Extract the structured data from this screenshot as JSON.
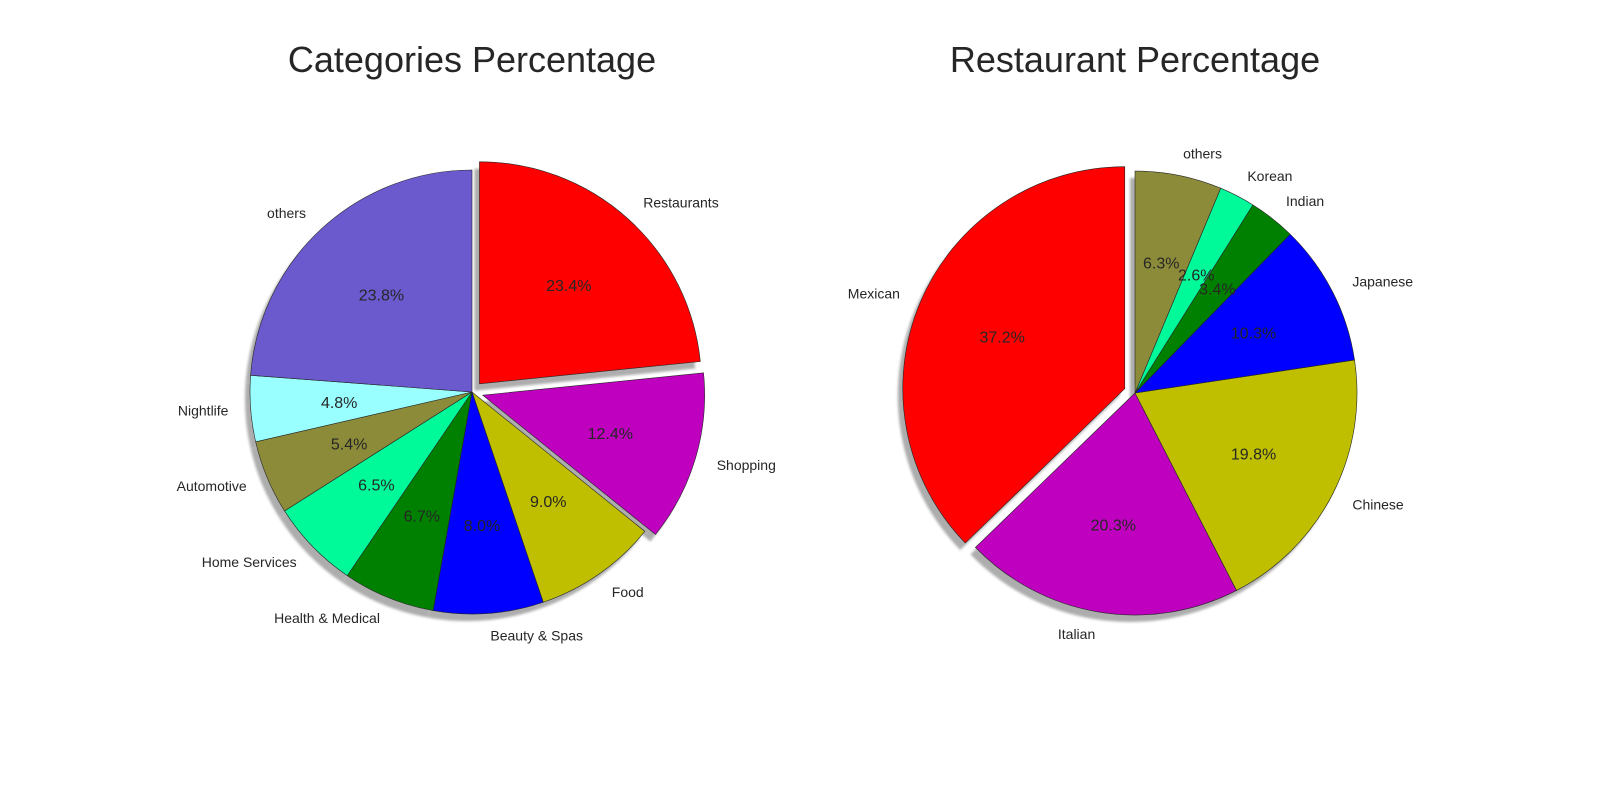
{
  "chart_data": [
    {
      "type": "pie",
      "title": "Categories Percentage",
      "start_angle_deg": 90,
      "direction": "clockwise",
      "shadow": true,
      "slices": [
        {
          "label": "Restaurants",
          "value": 23.4,
          "pct_text": "23.4%",
          "color": "#ff0000",
          "exploded": true
        },
        {
          "label": "Shopping",
          "value": 12.4,
          "pct_text": "12.4%",
          "color": "#bf00bf",
          "exploded": true
        },
        {
          "label": "Food",
          "value": 9.0,
          "pct_text": "9.0%",
          "color": "#bfbf00",
          "exploded": false
        },
        {
          "label": "Beauty & Spas",
          "value": 8.0,
          "pct_text": "8.0%",
          "color": "#0000ff",
          "exploded": false
        },
        {
          "label": "Health & Medical",
          "value": 6.7,
          "pct_text": "6.7%",
          "color": "#008000",
          "exploded": false
        },
        {
          "label": "Home Services",
          "value": 6.5,
          "pct_text": "6.5%",
          "color": "#00fa9a",
          "exploded": false
        },
        {
          "label": "Automotive",
          "value": 5.4,
          "pct_text": "5.4%",
          "color": "#8b8b3a",
          "exploded": false
        },
        {
          "label": "Nightlife",
          "value": 4.8,
          "pct_text": "4.8%",
          "color": "#99ffff",
          "exploded": false
        },
        {
          "label": "others",
          "value": 23.8,
          "pct_text": "23.8%",
          "color": "#6a5acd",
          "exploded": false
        }
      ]
    },
    {
      "type": "pie",
      "title": "Restaurant Percentage",
      "start_angle_deg": 90,
      "direction": "counterclockwise",
      "shadow": true,
      "slices": [
        {
          "label": "Mexican",
          "value": 37.2,
          "pct_text": "37.2%",
          "color": "#ff0000",
          "exploded": true
        },
        {
          "label": "Italian",
          "value": 20.3,
          "pct_text": "20.3%",
          "color": "#bf00bf",
          "exploded": false
        },
        {
          "label": "Chinese",
          "value": 19.8,
          "pct_text": "19.8%",
          "color": "#bfbf00",
          "exploded": false
        },
        {
          "label": "Japanese",
          "value": 10.3,
          "pct_text": "10.3%",
          "color": "#0000ff",
          "exploded": false
        },
        {
          "label": "Indian",
          "value": 3.4,
          "pct_text": "3.4%",
          "color": "#008000",
          "exploded": false
        },
        {
          "label": "Korean",
          "value": 2.6,
          "pct_text": "2.6%",
          "color": "#00fa9a",
          "exploded": false
        },
        {
          "label": "others",
          "value": 6.3,
          "pct_text": "6.3%",
          "color": "#8b8b3a",
          "exploded": false
        }
      ]
    }
  ]
}
